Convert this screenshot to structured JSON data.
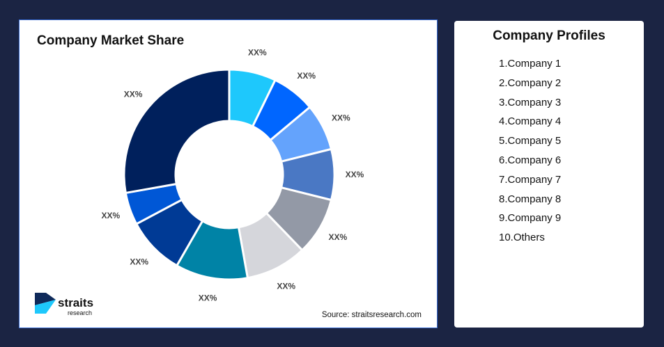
{
  "chart_data": {
    "type": "pie",
    "title": "Company Market Share",
    "donut": true,
    "values": [
      7.2,
      6.7,
      7.2,
      7.8,
      8.9,
      9.4,
      11.1,
      8.9,
      5.0,
      27.8
    ],
    "labels": [
      "XX%",
      "XX%",
      "XX%",
      "XX%",
      "XX%",
      "XX%",
      "XX%",
      "XX%",
      "XX%",
      "XX%"
    ],
    "colors": [
      "#1ec8fc",
      "#0066ff",
      "#64a3fc",
      "#4a78c4",
      "#9399a6",
      "#d5d6db",
      "#0083a6",
      "#003a95",
      "#0057d6",
      "#00205c"
    ]
  },
  "source": "Source: straitsresearch.com",
  "logo": {
    "text": "straits",
    "subtext": "research"
  },
  "profiles": {
    "title": "Company Profiles",
    "items": [
      "1.Company 1",
      "2.Company 2",
      "3.Company 3",
      "4.Company 4",
      "5.Company 5",
      "6.Company 6",
      "7.Company 7",
      "8.Company 8",
      "9.Company 9",
      "10.Others"
    ]
  }
}
